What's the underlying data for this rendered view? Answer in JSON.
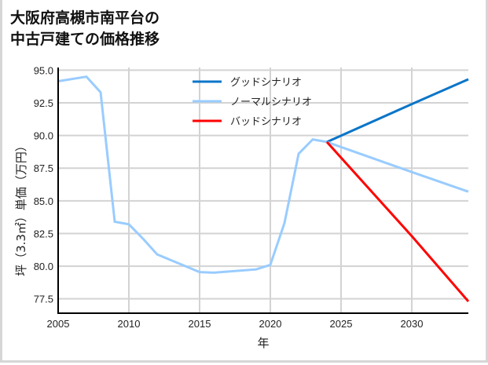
{
  "title": {
    "line1": "大阪府高槻市南平台の",
    "line2": "中古戸建ての価格推移"
  },
  "axes": {
    "xlabel": "年",
    "ylabel": "坪（3.3㎡）単価（万円）",
    "x_ticks": [
      "2005",
      "2010",
      "2015",
      "2020",
      "2025",
      "2030"
    ],
    "y_ticks": [
      "95.0",
      "92.5",
      "90.0",
      "87.5",
      "85.0",
      "82.5",
      "80.0",
      "77.5"
    ]
  },
  "legend": [
    {
      "label": "グッドシナリオ",
      "color": "#0a75c8"
    },
    {
      "label": "ノーマルシナリオ",
      "color": "#99ccff"
    },
    {
      "label": "バッドシナリオ",
      "color": "#ff0000"
    }
  ],
  "chart_data": {
    "type": "line",
    "title": "大阪府高槻市南平台の中古戸建ての価格推移",
    "xlabel": "年",
    "ylabel": "坪（3.3㎡）単価（万円）",
    "xlim": [
      2005,
      2034
    ],
    "ylim": [
      76.4,
      95.2
    ],
    "grid": true,
    "legend_position": "upper center",
    "series": [
      {
        "name": "ノーマルシナリオ (historical)",
        "color": "#99ccff",
        "x": [
          2005,
          2007,
          2008,
          2009,
          2010,
          2011,
          2012,
          2014,
          2015,
          2016,
          2019,
          2020,
          2021,
          2022,
          2023,
          2024
        ],
        "values": [
          94.15,
          94.5,
          93.3,
          83.4,
          83.2,
          82.1,
          80.9,
          80.0,
          79.55,
          79.5,
          79.75,
          80.1,
          83.3,
          88.6,
          89.7,
          89.5
        ]
      },
      {
        "name": "グッドシナリオ",
        "color": "#0a75c8",
        "x": [
          2024,
          2030,
          2034
        ],
        "values": [
          89.5,
          92.4,
          94.3
        ]
      },
      {
        "name": "ノーマルシナリオ",
        "color": "#99ccff",
        "x": [
          2024,
          2030,
          2034
        ],
        "values": [
          89.5,
          87.2,
          85.7
        ]
      },
      {
        "name": "バッドシナリオ",
        "color": "#ff0000",
        "x": [
          2024,
          2030,
          2034
        ],
        "values": [
          89.5,
          82.3,
          77.3
        ]
      }
    ]
  }
}
